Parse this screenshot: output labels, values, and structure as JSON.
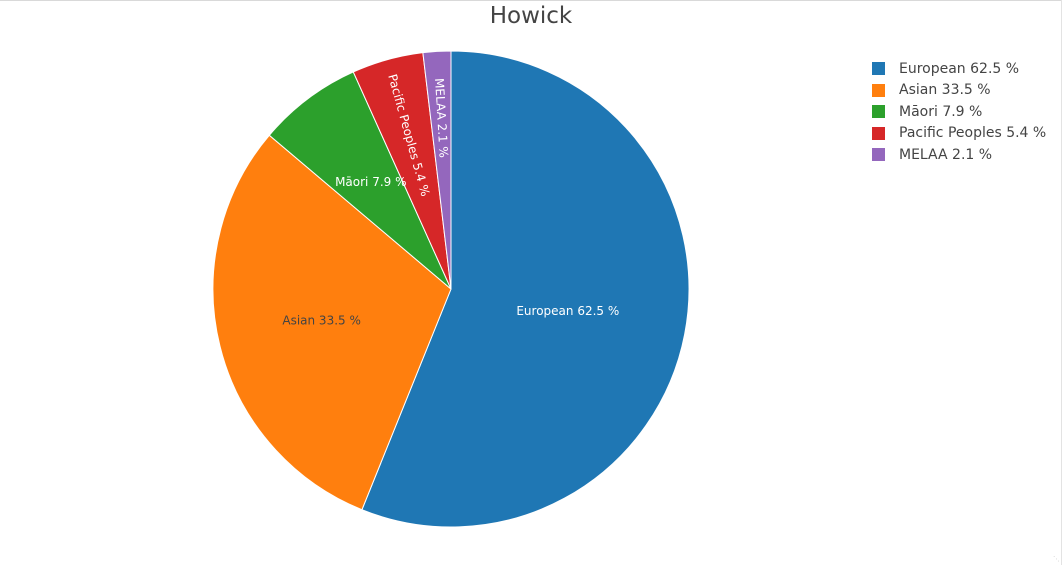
{
  "chart_data": {
    "type": "pie",
    "title": "Howick",
    "slices": [
      {
        "label": "European",
        "value": 62.5,
        "text": "European 62.5 %",
        "color": "#1f77b4"
      },
      {
        "label": "Asian",
        "value": 33.5,
        "text": "Asian 33.5 %",
        "color": "#ff7f0e"
      },
      {
        "label": "Māori",
        "value": 7.9,
        "text": "Māori 7.9 %",
        "color": "#2ca02c"
      },
      {
        "label": "Pacific Peoples",
        "value": 5.4,
        "text": "Pacific Peoples 5.4 %",
        "color": "#d62728"
      },
      {
        "label": "MELAA",
        "value": 2.1,
        "text": "MELAA 2.1 %",
        "color": "#9467bd"
      }
    ],
    "legend_placement": "top-right",
    "direction": "clockwise"
  }
}
